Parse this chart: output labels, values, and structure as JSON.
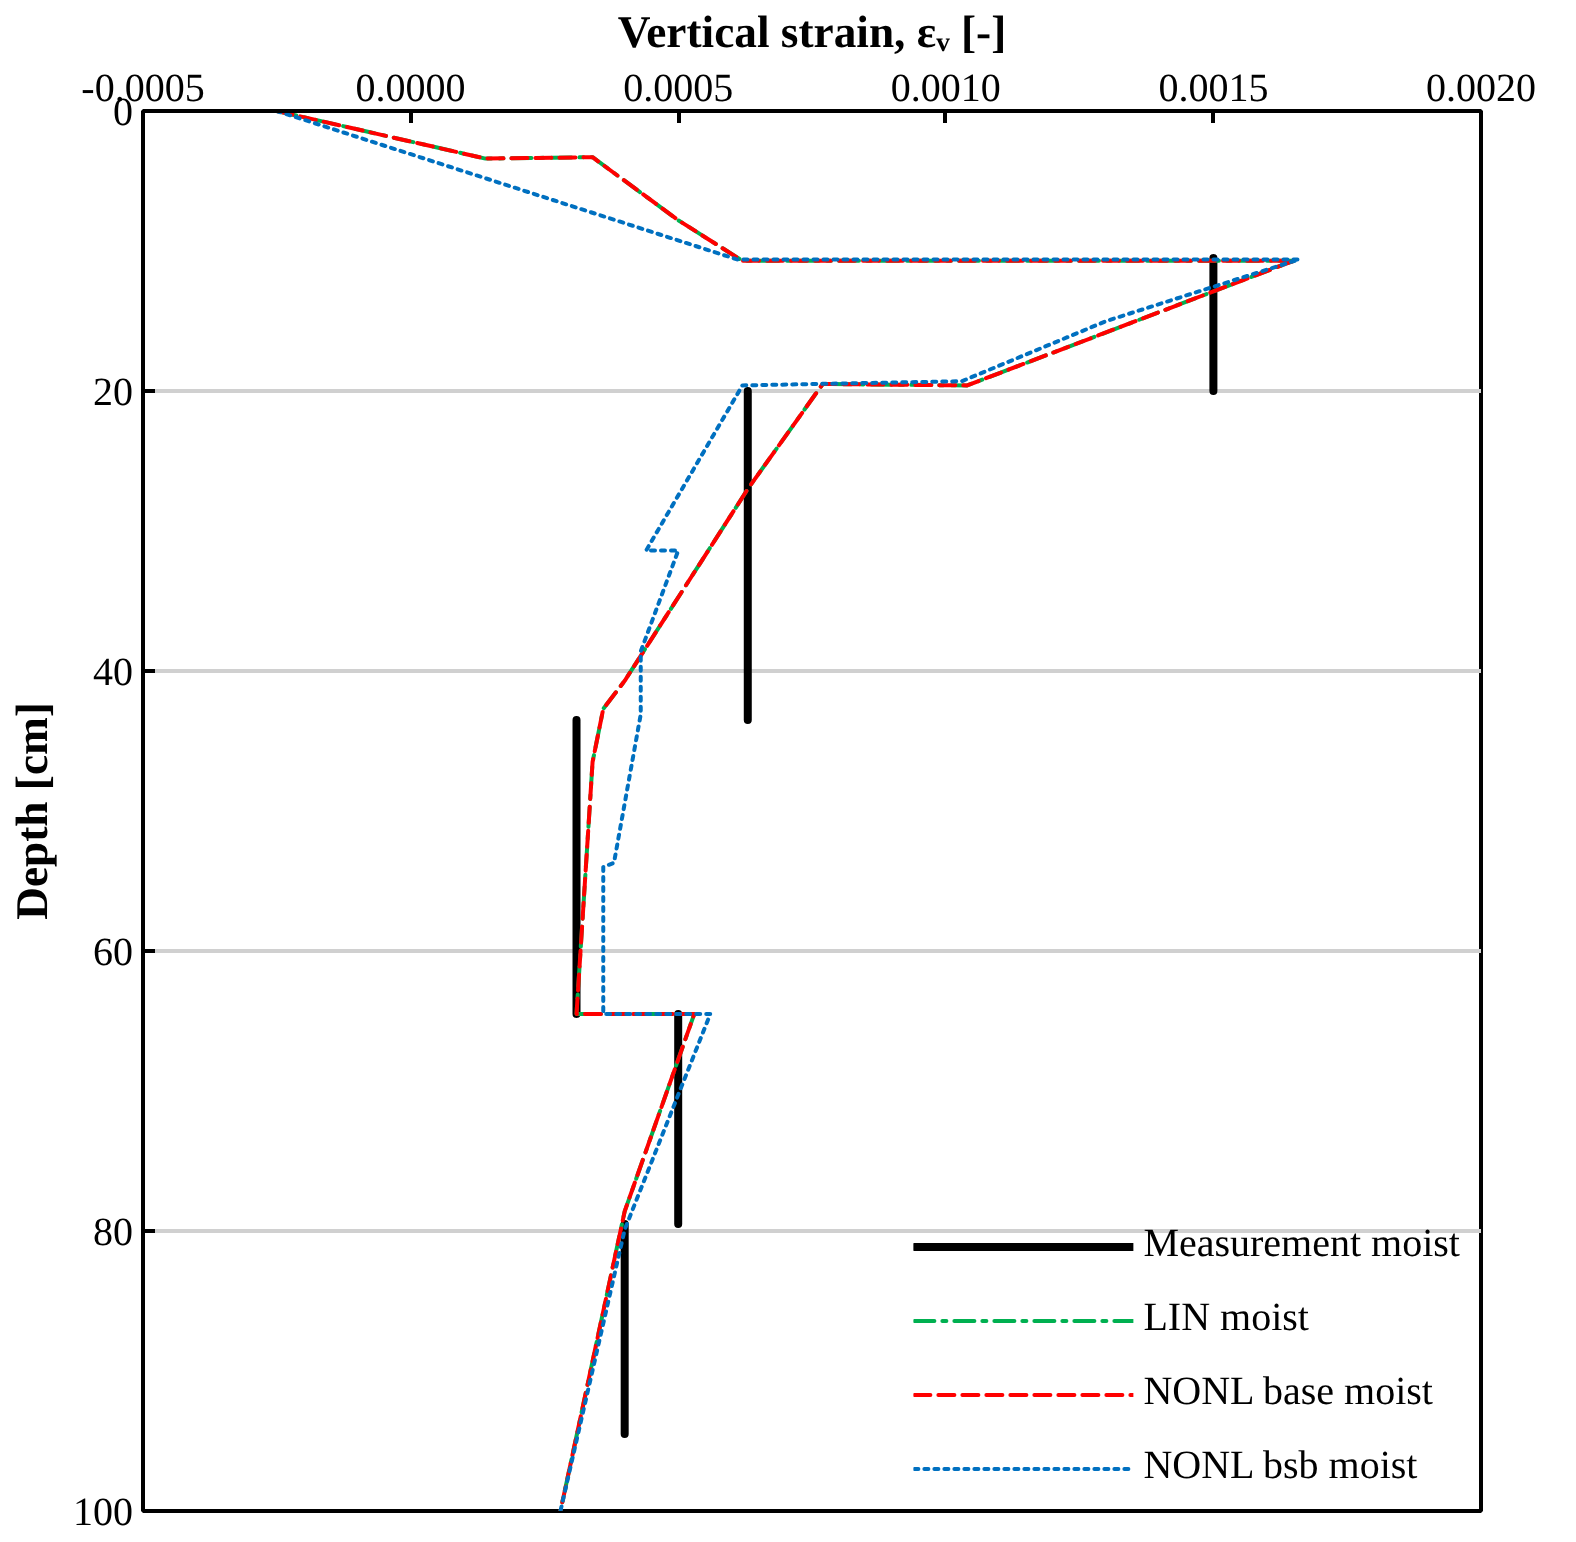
{
  "chart_data": {
    "type": "line",
    "xlabel": "Vertical strain, εᵥ [-]",
    "ylabel": "Depth [cm]",
    "xlim": [
      -0.0005,
      0.002
    ],
    "xticks": [
      {
        "value": -0.0005,
        "label": "-0.0005"
      },
      {
        "value": 0,
        "label": "0.0000"
      },
      {
        "value": 0.0005,
        "label": "0.0005"
      },
      {
        "value": 0.001,
        "label": "0.0010"
      },
      {
        "value": 0.0015,
        "label": "0.0015"
      },
      {
        "value": 0.002,
        "label": "0.0020"
      }
    ],
    "ylim": [
      100,
      0
    ],
    "yticks": [
      0,
      20,
      40,
      60,
      80,
      100
    ],
    "grid": "y",
    "legend": "bottom right",
    "series": [
      {
        "name": "Measurement moist",
        "color": "#000000",
        "line_style": "solid",
        "x": [
          0.0015,
          0.0015,
          null,
          0.00063,
          0.00063,
          null,
          0.00031,
          0.00031,
          null,
          0.0005,
          0.0005,
          null,
          0.0004,
          0.0004
        ],
        "values": [
          10.5,
          20,
          null,
          20,
          43.5,
          null,
          43.5,
          64.5,
          null,
          64.5,
          79.5,
          null,
          79.5,
          94.5
        ]
      },
      {
        "name": "LIN moist",
        "color": "#00b050",
        "line_style": "dashdot",
        "x": [
          -0.00025,
          0.00014,
          0.00034,
          0.0005,
          0.00062,
          0.00165,
          0.00104,
          0.00077,
          0.00063,
          0.0004,
          0.00036,
          0.00034,
          0.00031,
          0.00053,
          0.0004,
          0.00028
        ],
        "values": [
          0,
          3.4,
          3.3,
          7.8,
          10.7,
          10.7,
          19.6,
          19.5,
          27,
          40.7,
          42.7,
          46.5,
          64.5,
          64.5,
          78.6,
          100
        ]
      },
      {
        "name": "NONL base moist",
        "color": "#ff0000",
        "line_style": "dashed",
        "x": [
          -0.00025,
          0.00014,
          0.00034,
          0.0005,
          0.00062,
          0.00165,
          0.00104,
          0.00077,
          0.00063,
          0.0004,
          0.00036,
          0.00034,
          0.00031,
          0.00053,
          0.0004,
          0.00028
        ],
        "values": [
          0,
          3.4,
          3.3,
          7.8,
          10.7,
          10.7,
          19.6,
          19.5,
          27,
          40.7,
          42.7,
          46.5,
          64.5,
          64.5,
          78.6,
          100
        ]
      },
      {
        "name": "NONL bsb moist",
        "color": "#0070c0",
        "line_style": "dotted",
        "x": [
          -0.00025,
          0.00061,
          0.00166,
          0.0013,
          0.00103,
          0.00062,
          0.00044,
          0.0005,
          0.00043,
          0.00043,
          0.00038,
          0.00036,
          0.00036,
          0.00056,
          0.0004,
          0.00028
        ],
        "values": [
          0,
          10.6,
          10.6,
          15,
          19.3,
          19.6,
          31.4,
          31.4,
          38.6,
          43.1,
          53.7,
          54,
          64.5,
          64.5,
          79.9,
          100
        ]
      }
    ]
  }
}
